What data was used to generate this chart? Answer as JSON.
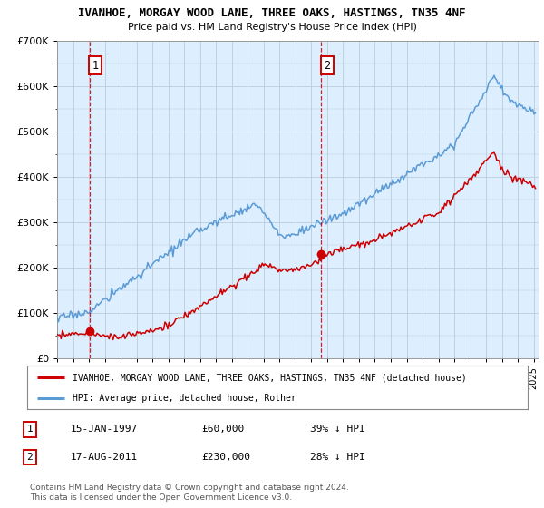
{
  "title": "IVANHOE, MORGAY WOOD LANE, THREE OAKS, HASTINGS, TN35 4NF",
  "subtitle": "Price paid vs. HM Land Registry's House Price Index (HPI)",
  "ylabel_ticks": [
    "£0",
    "£100K",
    "£200K",
    "£300K",
    "£400K",
    "£500K",
    "£600K",
    "£700K"
  ],
  "ylim": [
    0,
    700000
  ],
  "xlim_start": 1995.0,
  "xlim_end": 2025.3,
  "hpi_color": "#5b9bd5",
  "price_color": "#cc0000",
  "marker1_date": 1997.04,
  "marker1_price": 60000,
  "marker1_label": "1",
  "marker2_date": 2011.63,
  "marker2_price": 230000,
  "marker2_label": "2",
  "legend_line1": "IVANHOE, MORGAY WOOD LANE, THREE OAKS, HASTINGS, TN35 4NF (detached house)",
  "legend_line2": "HPI: Average price, detached house, Rother",
  "table_row1": [
    "1",
    "15-JAN-1997",
    "£60,000",
    "39% ↓ HPI"
  ],
  "table_row2": [
    "2",
    "17-AUG-2011",
    "£230,000",
    "28% ↓ HPI"
  ],
  "footnote": "Contains HM Land Registry data © Crown copyright and database right 2024.\nThis data is licensed under the Open Government Licence v3.0.",
  "background_color": "#ddeeff",
  "grid_color": "#bbccdd",
  "fig_bg": "#ffffff"
}
